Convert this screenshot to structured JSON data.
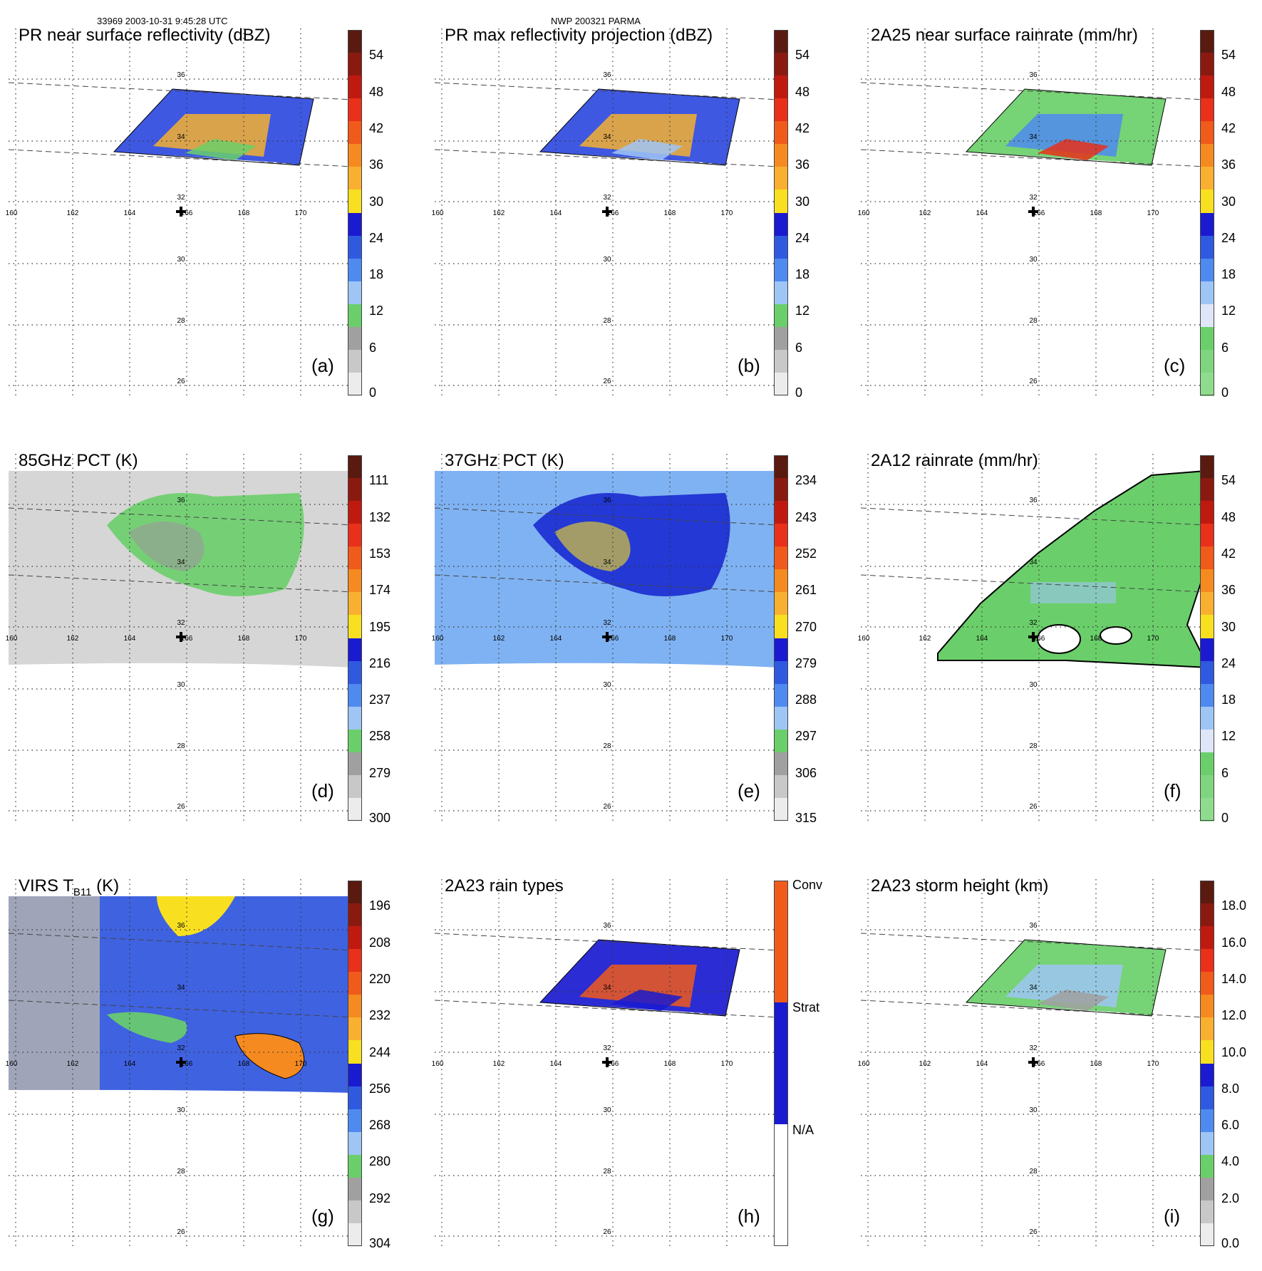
{
  "header": {
    "left": "33969 2003-10-31 9:45:28 UTC",
    "center": "NWP 200321 PARMA"
  },
  "grid": {
    "lon_labels": [
      "160",
      "162",
      "164",
      "166",
      "168",
      "170"
    ],
    "lat_labels": [
      "36",
      "34",
      "32",
      "30",
      "28",
      "26"
    ]
  },
  "panels": [
    {
      "id": "a",
      "title": "PR near surface reflectivity (dBZ)",
      "label": "(a)",
      "colorbar": {
        "ticks": [
          "54",
          "48",
          "42",
          "36",
          "30",
          "24",
          "18",
          "12",
          "6",
          "0"
        ],
        "segments": [
          "#5a1a10",
          "#8a1a10",
          "#c01a10",
          "#e8301a",
          "#f05a1a",
          "#f58a20",
          "#f9b030",
          "#f8e020",
          "#1a1ad0",
          "#2f5ae0",
          "#4f8af0",
          "#9fc5f5",
          "#6acf6a",
          "#a0a0a0",
          "#c8c8c8",
          "#ececec"
        ]
      },
      "swath": "pr",
      "fill": [
        "#2f4ae0",
        "#f5b030",
        "#6acf6a"
      ]
    },
    {
      "id": "b",
      "title": "PR max reflectivity projection (dBZ)",
      "label": "(b)",
      "colorbar": {
        "ticks": [
          "54",
          "48",
          "42",
          "36",
          "30",
          "24",
          "18",
          "12",
          "6",
          "0"
        ],
        "segments": [
          "#5a1a10",
          "#8a1a10",
          "#c01a10",
          "#e8301a",
          "#f05a1a",
          "#f58a20",
          "#f9b030",
          "#f8e020",
          "#1a1ad0",
          "#2f5ae0",
          "#4f8af0",
          "#9fc5f5",
          "#6acf6a",
          "#a0a0a0",
          "#c8c8c8",
          "#ececec"
        ]
      },
      "swath": "pr",
      "fill": [
        "#2f4ae0",
        "#f5b030",
        "#9fc5f5"
      ]
    },
    {
      "id": "c",
      "title": "2A25 near surface rainrate (mm/hr)",
      "label": "(c)",
      "colorbar": {
        "ticks": [
          "54",
          "48",
          "42",
          "36",
          "30",
          "24",
          "18",
          "12",
          "6",
          "0"
        ],
        "segments": [
          "#5a1a10",
          "#8a1a10",
          "#c01a10",
          "#e8301a",
          "#f05a1a",
          "#f58a20",
          "#f9b030",
          "#f8e020",
          "#1a1ad0",
          "#2f5ae0",
          "#4f8af0",
          "#9fc5f5",
          "#dfe6f8",
          "#6acf6a",
          "#7fd57f",
          "#8fdc8f"
        ]
      },
      "swath": "pr",
      "fill": [
        "#6acf6a",
        "#4f8af0",
        "#e8301a"
      ]
    },
    {
      "id": "d",
      "title": "85GHz PCT (K)",
      "label": "(d)",
      "colorbar": {
        "ticks": [
          "111",
          "132",
          "153",
          "174",
          "195",
          "216",
          "237",
          "258",
          "279",
          "300"
        ],
        "segments": [
          "#5a1a10",
          "#8a1a10",
          "#c01a10",
          "#e8301a",
          "#f05a1a",
          "#f58a20",
          "#f9b030",
          "#f8e020",
          "#1a1ad0",
          "#2f5ae0",
          "#4f8af0",
          "#9fc5f5",
          "#6acf6a",
          "#a0a0a0",
          "#c8c8c8",
          "#ececec"
        ]
      },
      "swath": "tmi",
      "fill": [
        "#d6d6d6",
        "#6acf6a",
        "#9a9a9a"
      ]
    },
    {
      "id": "e",
      "title": "37GHz PCT (K)",
      "label": "(e)",
      "colorbar": {
        "ticks": [
          "234",
          "243",
          "252",
          "261",
          "270",
          "279",
          "288",
          "297",
          "306",
          "315"
        ],
        "segments": [
          "#5a1a10",
          "#8a1a10",
          "#c01a10",
          "#e8301a",
          "#f05a1a",
          "#f58a20",
          "#f9b030",
          "#f8e020",
          "#1a1ad0",
          "#2f5ae0",
          "#4f8af0",
          "#9fc5f5",
          "#6acf6a",
          "#a0a0a0",
          "#c8c8c8",
          "#ececec"
        ]
      },
      "swath": "tmi",
      "fill": [
        "#7fb2f2",
        "#1a2ad0",
        "#f8e020"
      ]
    },
    {
      "id": "f",
      "title": "2A12 rainrate (mm/hr)",
      "label": "(f)",
      "colorbar": {
        "ticks": [
          "54",
          "48",
          "42",
          "36",
          "30",
          "24",
          "18",
          "12",
          "6",
          "0"
        ],
        "segments": [
          "#5a1a10",
          "#8a1a10",
          "#c01a10",
          "#e8301a",
          "#f05a1a",
          "#f58a20",
          "#f9b030",
          "#f8e020",
          "#1a1ad0",
          "#2f5ae0",
          "#4f8af0",
          "#9fc5f5",
          "#dfe6f8",
          "#6acf6a",
          "#7fd57f",
          "#8fdc8f"
        ]
      },
      "swath": "tmi-rain",
      "fill": [
        "#6acf6a",
        "#9fc5f5",
        "#ffffff"
      ]
    },
    {
      "id": "g",
      "title": "VIRS T",
      "title_sub": "B11",
      "title_end": " (K)",
      "label": "(g)",
      "colorbar": {
        "ticks": [
          "196",
          "208",
          "220",
          "232",
          "244",
          "256",
          "268",
          "280",
          "292",
          "304"
        ],
        "segments": [
          "#5a1a10",
          "#8a1a10",
          "#c01a10",
          "#e8301a",
          "#f05a1a",
          "#f58a20",
          "#f9b030",
          "#f8e020",
          "#1a1ad0",
          "#2f5ae0",
          "#4f8af0",
          "#9fc5f5",
          "#6acf6a",
          "#a0a0a0",
          "#c8c8c8",
          "#ececec"
        ]
      },
      "swath": "virs",
      "fill": [
        "#3f62e0",
        "#f8e020",
        "#f58a20"
      ]
    },
    {
      "id": "h",
      "title": "2A23 rain types",
      "label": "(h)",
      "colorbar": {
        "ticks": [
          "Conv",
          "Strat",
          "N/A"
        ],
        "segments": [
          "#f05a1a",
          "#1a1ad0",
          "#ffffff"
        ]
      },
      "swath": "pr",
      "fill": [
        "#1a1ad0",
        "#f05a1a",
        "#1a1ad0"
      ]
    },
    {
      "id": "i",
      "title": "2A23 storm height (km)",
      "label": "(i)",
      "colorbar": {
        "ticks": [
          "18.0",
          "16.0",
          "14.0",
          "12.0",
          "10.0",
          "8.0",
          "6.0",
          "4.0",
          "2.0",
          "0.0"
        ],
        "segments": [
          "#5a1a10",
          "#8a1a10",
          "#c01a10",
          "#e8301a",
          "#f05a1a",
          "#f58a20",
          "#f9b030",
          "#f8e020",
          "#1a1ad0",
          "#2f5ae0",
          "#4f8af0",
          "#9fc5f5",
          "#6acf6a",
          "#a0a0a0",
          "#c8c8c8",
          "#ececec"
        ]
      },
      "swath": "pr",
      "fill": [
        "#6acf6a",
        "#9fc5f5",
        "#a0a0a0"
      ]
    }
  ]
}
